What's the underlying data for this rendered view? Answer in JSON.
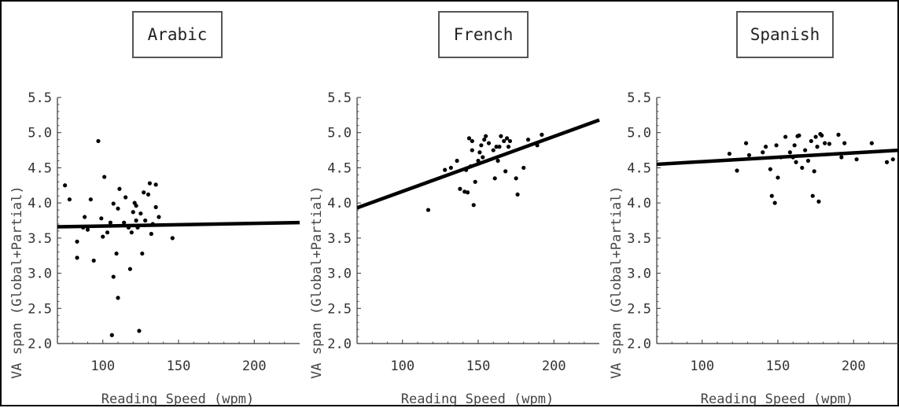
{
  "chart_data": [
    {
      "type": "scatter",
      "title": "Arabic",
      "xlabel": "Reading Speed (wpm)",
      "ylabel": "VA span (Global+Partial)",
      "xlim": [
        70,
        230
      ],
      "ylim": [
        2.0,
        5.5
      ],
      "xticks": [
        "100",
        "150",
        "200"
      ],
      "yticks": [
        "2.0",
        "2.5",
        "3.0",
        "3.5",
        "4.0",
        "4.5",
        "5.0",
        "5.5"
      ],
      "regression": {
        "x": [
          70,
          230
        ],
        "y": [
          3.66,
          3.72
        ]
      },
      "points": [
        [
          75,
          4.25
        ],
        [
          78,
          4.05
        ],
        [
          83,
          3.45
        ],
        [
          83,
          3.22
        ],
        [
          87,
          3.65
        ],
        [
          88,
          3.8
        ],
        [
          90,
          3.62
        ],
        [
          92,
          4.05
        ],
        [
          94,
          3.18
        ],
        [
          97,
          4.88
        ],
        [
          99,
          3.78
        ],
        [
          100,
          3.52
        ],
        [
          101,
          4.37
        ],
        [
          103,
          3.58
        ],
        [
          105,
          3.72
        ],
        [
          106,
          2.12
        ],
        [
          107,
          2.95
        ],
        [
          107,
          3.99
        ],
        [
          109,
          3.28
        ],
        [
          110,
          2.65
        ],
        [
          110,
          3.92
        ],
        [
          111,
          4.2
        ],
        [
          114,
          3.72
        ],
        [
          115,
          4.08
        ],
        [
          117,
          3.65
        ],
        [
          118,
          3.06
        ],
        [
          119,
          3.58
        ],
        [
          120,
          3.87
        ],
        [
          121,
          4.0
        ],
        [
          122,
          3.96
        ],
        [
          122,
          3.75
        ],
        [
          123,
          3.65
        ],
        [
          124,
          2.18
        ],
        [
          125,
          3.85
        ],
        [
          126,
          3.28
        ],
        [
          127,
          4.15
        ],
        [
          128,
          3.75
        ],
        [
          130,
          4.12
        ],
        [
          131,
          4.28
        ],
        [
          132,
          3.56
        ],
        [
          133,
          3.7
        ],
        [
          135,
          3.94
        ],
        [
          135,
          4.26
        ],
        [
          137,
          3.8
        ],
        [
          146,
          3.5
        ]
      ]
    },
    {
      "type": "scatter",
      "title": "French",
      "xlabel": "Reading Speed (wpm)",
      "ylabel": "VA span (Global+Partial)",
      "xlim": [
        70,
        230
      ],
      "ylim": [
        2.0,
        5.5
      ],
      "xticks": [
        "100",
        "150",
        "200"
      ],
      "yticks": [
        "2.0",
        "2.5",
        "3.0",
        "3.5",
        "4.0",
        "4.5",
        "5.0",
        "5.5"
      ],
      "regression": {
        "x": [
          70,
          230
        ],
        "y": [
          3.93,
          5.18
        ]
      },
      "points": [
        [
          117,
          3.9
        ],
        [
          128,
          4.47
        ],
        [
          132,
          4.5
        ],
        [
          136,
          4.6
        ],
        [
          138,
          4.2
        ],
        [
          141,
          4.16
        ],
        [
          142,
          4.47
        ],
        [
          143,
          4.15
        ],
        [
          144,
          4.92
        ],
        [
          145,
          4.52
        ],
        [
          146,
          4.75
        ],
        [
          146,
          4.88
        ],
        [
          147,
          3.97
        ],
        [
          148,
          4.3
        ],
        [
          150,
          4.6
        ],
        [
          151,
          4.72
        ],
        [
          152,
          4.82
        ],
        [
          153,
          4.65
        ],
        [
          154,
          4.9
        ],
        [
          155,
          4.95
        ],
        [
          157,
          4.85
        ],
        [
          160,
          4.75
        ],
        [
          161,
          4.35
        ],
        [
          162,
          4.8
        ],
        [
          163,
          4.6
        ],
        [
          164,
          4.8
        ],
        [
          165,
          4.95
        ],
        [
          167,
          4.88
        ],
        [
          168,
          4.45
        ],
        [
          169,
          4.92
        ],
        [
          170,
          4.8
        ],
        [
          171,
          4.88
        ],
        [
          175,
          4.35
        ],
        [
          176,
          4.12
        ],
        [
          180,
          4.5
        ],
        [
          183,
          4.9
        ],
        [
          189,
          4.82
        ],
        [
          192,
          4.97
        ]
      ]
    },
    {
      "type": "scatter",
      "title": "Spanish",
      "xlabel": "Reading Speed (wpm)",
      "ylabel": "VA span (Global+Partial)",
      "xlim": [
        70,
        230
      ],
      "ylim": [
        2.0,
        5.5
      ],
      "xticks": [
        "100",
        "150",
        "200"
      ],
      "yticks": [
        "2.0",
        "2.5",
        "3.0",
        "3.5",
        "4.0",
        "4.5",
        "5.0",
        "5.5"
      ],
      "regression": {
        "x": [
          70,
          230
        ],
        "y": [
          4.55,
          4.75
        ]
      },
      "points": [
        [
          118,
          4.7
        ],
        [
          123,
          4.46
        ],
        [
          129,
          4.85
        ],
        [
          131,
          4.68
        ],
        [
          140,
          4.72
        ],
        [
          142,
          4.8
        ],
        [
          145,
          4.48
        ],
        [
          146,
          4.1
        ],
        [
          148,
          4.0
        ],
        [
          149,
          4.82
        ],
        [
          150,
          4.36
        ],
        [
          152,
          4.65
        ],
        [
          155,
          4.94
        ],
        [
          158,
          4.72
        ],
        [
          160,
          4.65
        ],
        [
          161,
          4.82
        ],
        [
          162,
          4.58
        ],
        [
          163,
          4.95
        ],
        [
          164,
          4.96
        ],
        [
          166,
          4.5
        ],
        [
          168,
          4.75
        ],
        [
          170,
          4.6
        ],
        [
          172,
          4.88
        ],
        [
          173,
          4.1
        ],
        [
          174,
          4.45
        ],
        [
          175,
          4.94
        ],
        [
          176,
          4.8
        ],
        [
          177,
          4.02
        ],
        [
          178,
          4.98
        ],
        [
          179,
          4.96
        ],
        [
          181,
          4.85
        ],
        [
          184,
          4.84
        ],
        [
          190,
          4.97
        ],
        [
          192,
          4.65
        ],
        [
          194,
          4.85
        ],
        [
          202,
          4.62
        ],
        [
          212,
          4.85
        ],
        [
          222,
          4.58
        ],
        [
          226,
          4.62
        ]
      ]
    }
  ]
}
